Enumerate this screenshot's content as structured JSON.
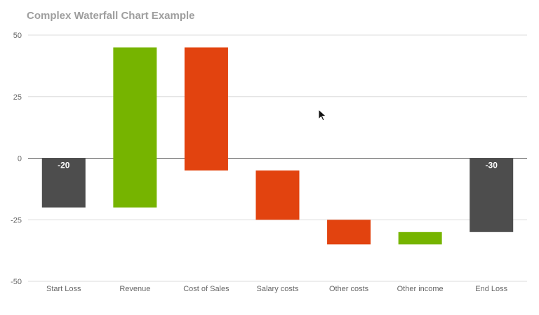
{
  "chart_data": {
    "type": "waterfall",
    "title": "Complex Waterfall Chart Example",
    "xlabel": "",
    "ylabel": "",
    "ylim": [
      -50,
      50
    ],
    "yticks": [
      50,
      25,
      0,
      -25,
      -50
    ],
    "grid": true,
    "legend": "none",
    "categories": [
      "Start Loss",
      "Revenue",
      "Cost of Sales",
      "Salary costs",
      "Other costs",
      "Other income",
      "End Loss"
    ],
    "bars": [
      {
        "category": "Start Loss",
        "start": 0,
        "end": -20,
        "kind": "total",
        "label": "-20"
      },
      {
        "category": "Revenue",
        "start": -20,
        "end": 45,
        "kind": "increase",
        "label": ""
      },
      {
        "category": "Cost of Sales",
        "start": 45,
        "end": -5,
        "kind": "decrease",
        "label": ""
      },
      {
        "category": "Salary costs",
        "start": -5,
        "end": -25,
        "kind": "decrease",
        "label": ""
      },
      {
        "category": "Other costs",
        "start": -25,
        "end": -35,
        "kind": "decrease",
        "label": ""
      },
      {
        "category": "Other income",
        "start": -35,
        "end": -30,
        "kind": "increase",
        "label": ""
      },
      {
        "category": "End Loss",
        "start": 0,
        "end": -30,
        "kind": "total",
        "label": "-30"
      }
    ],
    "colors": {
      "total": "#4d4d4d",
      "increase": "#76b400",
      "decrease": "#e2430f",
      "grid": "#dcdcdc",
      "zero_line": "#555555"
    }
  }
}
